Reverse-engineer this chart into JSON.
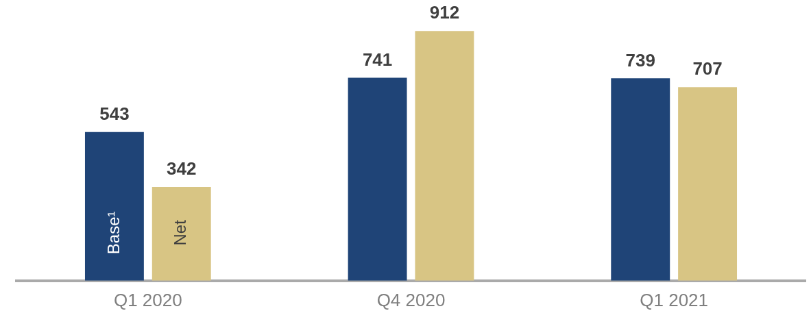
{
  "chart_data": {
    "type": "bar",
    "categories": [
      "Q1 2020",
      "Q4 2020",
      "Q1 2021"
    ],
    "series": [
      {
        "name": "Base¹",
        "color": "#1f4477",
        "values": [
          543,
          741,
          739
        ]
      },
      {
        "name": "Net",
        "color": "#d8c584",
        "values": [
          342,
          912,
          707
        ]
      }
    ],
    "data_labels": true,
    "grid": false,
    "legend": false
  }
}
